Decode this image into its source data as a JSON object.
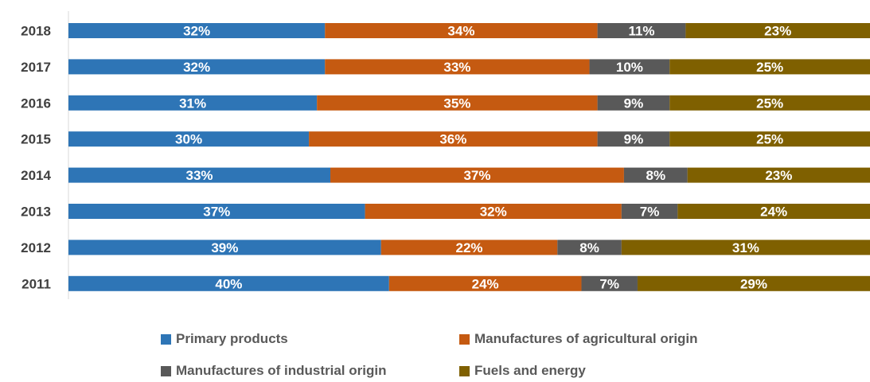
{
  "chart_data": {
    "type": "bar",
    "orientation": "horizontal",
    "stacked": "percent",
    "categories": [
      "2018",
      "2017",
      "2016",
      "2015",
      "2014",
      "2013",
      "2012",
      "2011"
    ],
    "series": [
      {
        "name": "Primary products",
        "color": "#2E75B6",
        "values": [
          32,
          32,
          31,
          30,
          33,
          37,
          39,
          40
        ]
      },
      {
        "name": "Manufactures of agricultural origin",
        "color": "#C55A11",
        "values": [
          34,
          33,
          35,
          36,
          37,
          32,
          22,
          24
        ]
      },
      {
        "name": "Manufactures of industrial origin",
        "color": "#595959",
        "values": [
          11,
          10,
          9,
          9,
          8,
          7,
          8,
          7
        ]
      },
      {
        "name": "Fuels and energy",
        "color": "#7F6000",
        "values": [
          23,
          25,
          25,
          25,
          23,
          24,
          31,
          29
        ]
      }
    ],
    "value_suffix": "%",
    "title": "",
    "xlabel": "",
    "ylabel": "",
    "xlim": [
      0,
      100
    ],
    "grid": false,
    "legend_position": "bottom"
  }
}
